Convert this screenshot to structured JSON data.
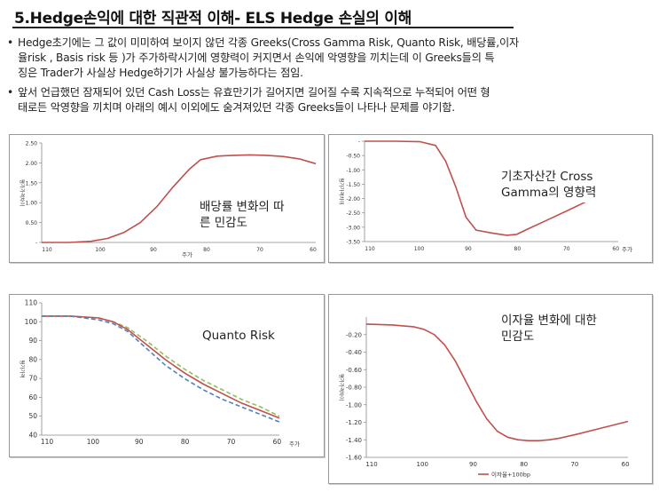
{
  "slide": {
    "title": "5.Hedge손익에 대한 직관적 이해- ELS Hedge 손실의 이해",
    "bullets": [
      {
        "marker": "•",
        "lines": [
          "Hedge초기에는 그 값이 미미하여 보이지 않던 각종 Greeks(Cross Gamma Risk, Quanto Risk, 배당률,이자",
          "율risk , Basis risk 등 )가 주가하락시기에  영향력이 커지면서 손익에 악영향을 끼치는데 이 Greeks들의 특",
          "징은 Trader가 사실상 Hedge하기가 사실상 불가능하다는 점임."
        ]
      },
      {
        "marker": "•",
        "lines": [
          "앞서 언급했던 잠재되어 있던 Cash Loss는 유효만기가 길어지면 길어질 수록 지속적으로 누적되어 어떤 형",
          "태로든 악영향을 끼치며 아래의 예시 이외에도 숨겨져있던 각종 Greeks들이 나타나 문제를 야기함."
        ]
      }
    ]
  },
  "chart_data": [
    {
      "type": "line",
      "callout": [
        "배당률 변화의 따",
        "른 민감도"
      ],
      "ylabel": "평가가격차이",
      "xlabel": "주가",
      "x_ticks": [
        "110",
        "100",
        "90",
        "80",
        "70",
        "60"
      ],
      "y_ticks": [
        "2.50",
        "2.00",
        "1.50",
        "1.00",
        "0.50",
        "-"
      ],
      "xlim": [
        110,
        60
      ],
      "ylim": [
        0,
        2.5
      ],
      "series": [
        {
          "color": "#c0504d",
          "x": [
            110,
            105,
            101,
            98,
            95,
            92,
            89,
            86,
            83,
            81,
            78,
            75,
            72,
            69,
            66,
            63,
            60
          ],
          "y": [
            0.0,
            0.0,
            0.03,
            0.1,
            0.25,
            0.5,
            0.9,
            1.4,
            1.85,
            2.08,
            2.17,
            2.19,
            2.2,
            2.19,
            2.16,
            2.1,
            1.98
          ]
        }
      ]
    },
    {
      "type": "line",
      "callout": [
        "기초자산간 Cross",
        "Gamma의 영향력"
      ],
      "ylabel": "평가가격차이",
      "xlabel": "주가",
      "x_ticks": [
        "110",
        "100",
        "90",
        "80",
        "70",
        "60"
      ],
      "y_ticks": [
        "-",
        "-0.50",
        "-1.00",
        "-1.50",
        "-2.00",
        "-2.50",
        "-3.00",
        "-3.50"
      ],
      "xlim": [
        110,
        60
      ],
      "ylim": [
        -3.5,
        0
      ],
      "series": [
        {
          "color": "#c0504d",
          "x": [
            110,
            104,
            99,
            96,
            94,
            92,
            90,
            88,
            85,
            82,
            80,
            78,
            74,
            70,
            66
          ],
          "y": [
            0.0,
            0.0,
            -0.02,
            -0.15,
            -0.7,
            -1.6,
            -2.65,
            -3.1,
            -3.2,
            -3.28,
            -3.25,
            -3.08,
            -2.75,
            -2.42,
            -2.08
          ]
        }
      ]
    },
    {
      "type": "line",
      "callout": [
        "Quanto Risk"
      ],
      "ylabel": "평가가격",
      "xlabel": "주가",
      "x_ticks": [
        "110",
        "100",
        "90",
        "80",
        "70",
        "60"
      ],
      "y_ticks": [
        "110",
        "100",
        "90",
        "80",
        "70",
        "60",
        "50",
        "40"
      ],
      "xlim": [
        110,
        60
      ],
      "ylim": [
        40,
        110
      ],
      "series": [
        {
          "color": "#9bbb59",
          "dash": "5,3",
          "x": [
            110,
            104,
            98,
            95,
            92,
            88,
            84,
            80,
            76,
            72,
            68,
            64,
            60
          ],
          "y": [
            103,
            103,
            102,
            100,
            97,
            90,
            82,
            75,
            69,
            64,
            59,
            55,
            50
          ]
        },
        {
          "color": "#c0504d",
          "dash": "",
          "x": [
            110,
            104,
            98,
            95,
            92,
            88,
            84,
            80,
            76,
            72,
            68,
            64,
            60
          ],
          "y": [
            103,
            103,
            102,
            100,
            96,
            88,
            80,
            73,
            67,
            62,
            57,
            53,
            49
          ]
        },
        {
          "color": "#4f81bd",
          "dash": "5,3",
          "x": [
            110,
            104,
            98,
            95,
            92,
            88,
            84,
            80,
            76,
            72,
            68,
            64,
            60
          ],
          "y": [
            103,
            103,
            101,
            99,
            95,
            86,
            77,
            70,
            64,
            59,
            55,
            51,
            47
          ]
        }
      ]
    },
    {
      "type": "line",
      "callout": [
        "이자율 변화에 대한",
        "민감도"
      ],
      "ylabel": "평가가격차이",
      "legend": "이자율+100bp",
      "x_ticks": [
        "110",
        "100",
        "90",
        "80",
        "70",
        "60"
      ],
      "y_ticks": [
        "-0.20",
        "-0.40",
        "-0.60",
        "-0.80",
        "-1.00",
        "-1.20",
        "-1.40",
        "-1.60"
      ],
      "xlim": [
        110,
        60
      ],
      "ylim": [
        -1.6,
        0
      ],
      "series": [
        {
          "name": "이자율+100bp",
          "color": "#c0504d",
          "x": [
            110,
            105,
            101,
            99,
            97,
            95,
            93,
            91,
            89,
            87,
            85,
            83,
            81,
            79,
            77,
            75,
            73,
            70,
            66,
            60
          ],
          "y": [
            -0.08,
            -0.09,
            -0.11,
            -0.14,
            -0.2,
            -0.32,
            -0.5,
            -0.73,
            -0.96,
            -1.16,
            -1.3,
            -1.37,
            -1.4,
            -1.41,
            -1.41,
            -1.4,
            -1.38,
            -1.34,
            -1.28,
            -1.19
          ]
        }
      ]
    }
  ],
  "colors": {
    "series_red": "#c0504d",
    "series_green": "#9bbb59",
    "series_blue": "#4f81bd",
    "axis": "#888888"
  }
}
